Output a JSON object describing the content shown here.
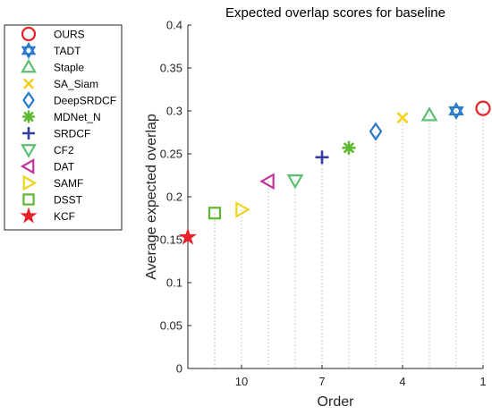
{
  "chart_data": {
    "type": "scatter",
    "title": "Expected overlap scores for baseline",
    "xlabel": "Order",
    "ylabel": "Average expected overlap",
    "xlim": [
      12,
      1
    ],
    "ylim": [
      0,
      0.4
    ],
    "yticks": [
      0,
      0.05,
      0.1,
      0.15,
      0.2,
      0.25,
      0.3,
      0.35,
      0.4
    ],
    "xticks": [
      10,
      7,
      4,
      1
    ],
    "grid": "dotted vertical drop lines from each point to the x-axis",
    "legend_position": "outside-left",
    "series": [
      {
        "name": "OURS",
        "order": 1,
        "value": 0.303,
        "color": "#e8212a",
        "marker": "circle"
      },
      {
        "name": "TADT",
        "order": 2,
        "value": 0.3,
        "color": "#2a7ac8",
        "marker": "hexagram"
      },
      {
        "name": "Staple",
        "order": 3,
        "value": 0.295,
        "color": "#5cbf72",
        "marker": "triangle-up"
      },
      {
        "name": "SA_Siam",
        "order": 4,
        "value": 0.292,
        "color": "#f2d31b",
        "marker": "x"
      },
      {
        "name": "DeepSRDCF",
        "order": 5,
        "value": 0.276,
        "color": "#2a7ac8",
        "marker": "diamond"
      },
      {
        "name": "MDNet_N",
        "order": 6,
        "value": 0.257,
        "color": "#5fb832",
        "marker": "asterisk"
      },
      {
        "name": "SRDCF",
        "order": 7,
        "value": 0.246,
        "color": "#363c9c",
        "marker": "plus"
      },
      {
        "name": "CF2",
        "order": 8,
        "value": 0.219,
        "color": "#5cbf72",
        "marker": "triangle-down"
      },
      {
        "name": "DAT",
        "order": 9,
        "value": 0.218,
        "color": "#c2359c",
        "marker": "triangle-left"
      },
      {
        "name": "SAMF",
        "order": 10,
        "value": 0.185,
        "color": "#f2d31b",
        "marker": "triangle-right"
      },
      {
        "name": "DSST",
        "order": 11,
        "value": 0.181,
        "color": "#5fb832",
        "marker": "square"
      },
      {
        "name": "KCF",
        "order": 12,
        "value": 0.153,
        "color": "#e8212a",
        "marker": "pentagram"
      }
    ]
  }
}
